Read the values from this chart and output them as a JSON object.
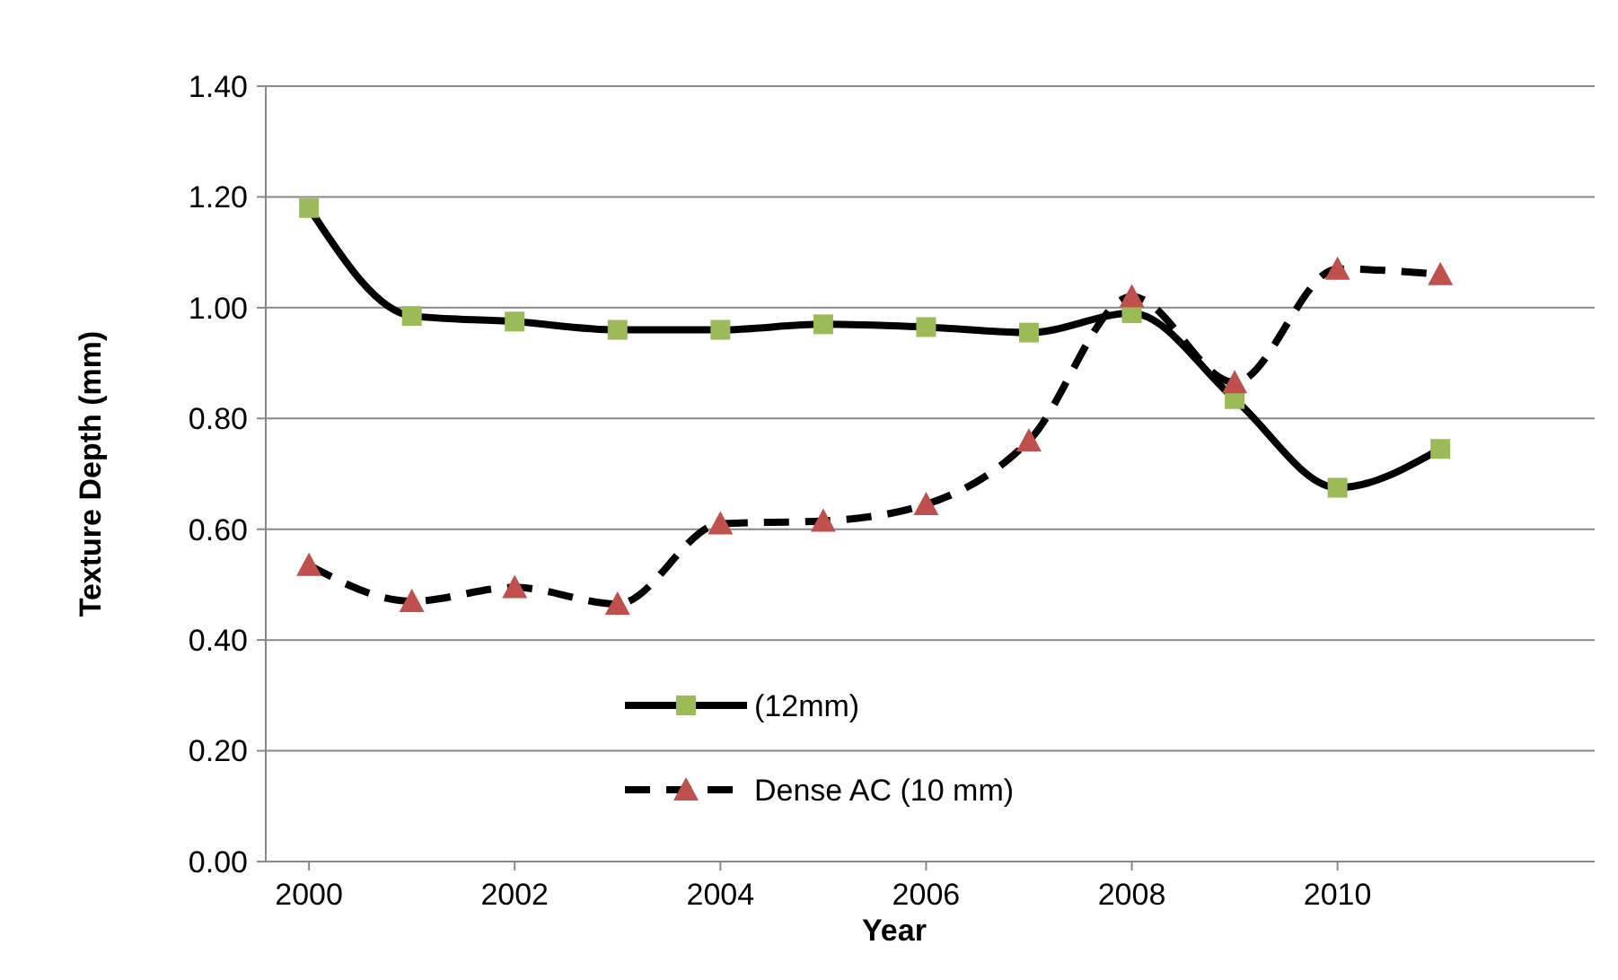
{
  "chart_data": {
    "type": "line",
    "xlabel": "Year",
    "ylabel": "Texture Depth (mm)",
    "x": [
      2000,
      2001,
      2002,
      2003,
      2004,
      2005,
      2006,
      2007,
      2008,
      2009,
      2010,
      2011
    ],
    "xlim": [
      1999.58,
      2012.5
    ],
    "xticks": [
      2000,
      2002,
      2004,
      2006,
      2008,
      2010
    ],
    "ylim": [
      0,
      1.4
    ],
    "yticks": [
      {
        "value": 0,
        "label": "0.00"
      },
      {
        "value": 0.2,
        "label": "0.20"
      },
      {
        "value": 0.4,
        "label": "0.40"
      },
      {
        "value": 0.6,
        "label": "0.60"
      },
      {
        "value": 0.8,
        "label": "0.80"
      },
      {
        "value": 1,
        "label": "1.00"
      },
      {
        "value": 1.2,
        "label": "1.20"
      },
      {
        "value": 1.4,
        "label": "1.40"
      }
    ],
    "grid": "y",
    "legend": "bottom",
    "series": [
      {
        "name": "(12mm)",
        "color": "#000000",
        "marker": "square",
        "line_style": "solid",
        "colors": [
          "#9bbb59",
          "#9bbb59",
          "#9bbb59",
          "#9bbb59",
          "#9bbb59",
          "#9bbb59",
          "#9bbb59",
          "#9bbb59",
          "#9bbb59",
          "#9bbb59",
          "#9bbb59",
          "#9bbb59"
        ],
        "values": [
          1.18,
          0.985,
          0.975,
          0.96,
          0.96,
          0.97,
          0.965,
          0.955,
          0.99,
          0.835,
          0.675,
          0.745
        ]
      },
      {
        "name": "Dense AC (10 mm)",
        "color": "#000000",
        "marker": "triangle",
        "line_style": "dashed",
        "colors": [
          "#c0504d",
          "#c0504d",
          "#c0504d",
          "#c0504d",
          "#c0504d",
          "#c0504d",
          "#c0504d",
          "#c0504d",
          "#c0504d",
          "#c0504d",
          "#c0504d",
          "#c0504d"
        ],
        "values": [
          0.535,
          0.47,
          0.495,
          0.465,
          0.61,
          0.615,
          0.645,
          0.76,
          1.02,
          0.865,
          1.07,
          1.06
        ]
      }
    ]
  }
}
